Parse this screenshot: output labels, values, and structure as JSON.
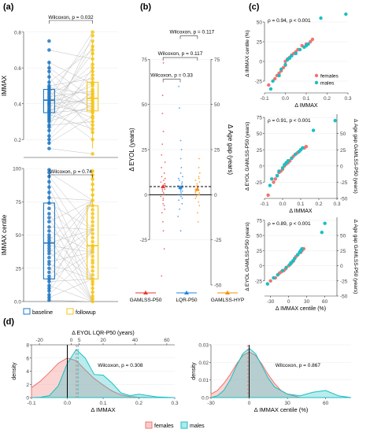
{
  "colors": {
    "baseline": "#1f77c4",
    "followup": "#f5c518",
    "pair_line": "#bdbdbd",
    "females": "#f07470",
    "males": "#19bfc4",
    "gamlss_p50": "#e53935",
    "lqr_p50": "#1e88e5",
    "gamlss_hyp": "#fb8c00",
    "axis": "#333333",
    "grid": "#ebebeb"
  },
  "panels": {
    "a": "(a)",
    "b": "(b)",
    "c": "(c)",
    "d": "(d)"
  },
  "legend_a": {
    "baseline": "baseline",
    "followup": "followup"
  },
  "legend_d": {
    "females": "females",
    "males": "males"
  },
  "chart_data": [
    {
      "id": "a_top",
      "type": "box_paired",
      "ylabel": "IMMAX",
      "ylim": [
        0.1,
        0.9
      ],
      "yticks": [
        0.2,
        0.4,
        0.6,
        0.8
      ],
      "annotation": "Wilcoxon, p = 0.032",
      "series": [
        {
          "name": "baseline",
          "q1": 0.35,
          "median": 0.42,
          "q3": 0.48,
          "whisker_low": 0.17,
          "whisker_high": 0.64,
          "points": [
            0.15,
            0.18,
            0.2,
            0.22,
            0.25,
            0.27,
            0.28,
            0.3,
            0.31,
            0.32,
            0.33,
            0.34,
            0.35,
            0.36,
            0.36,
            0.37,
            0.38,
            0.39,
            0.4,
            0.4,
            0.41,
            0.42,
            0.42,
            0.43,
            0.44,
            0.45,
            0.46,
            0.47,
            0.48,
            0.49,
            0.5,
            0.52,
            0.55,
            0.58,
            0.6,
            0.63,
            0.7,
            0.75
          ]
        },
        {
          "name": "followup",
          "q1": 0.36,
          "median": 0.43,
          "q3": 0.52,
          "whisker_low": 0.15,
          "whisker_high": 0.75,
          "points": [
            0.12,
            0.2,
            0.24,
            0.26,
            0.28,
            0.3,
            0.32,
            0.33,
            0.35,
            0.36,
            0.37,
            0.38,
            0.39,
            0.4,
            0.41,
            0.42,
            0.43,
            0.44,
            0.45,
            0.46,
            0.47,
            0.48,
            0.5,
            0.51,
            0.52,
            0.54,
            0.56,
            0.58,
            0.6,
            0.62,
            0.65,
            0.68,
            0.7,
            0.72,
            0.75,
            0.78,
            0.8
          ]
        }
      ]
    },
    {
      "id": "a_bottom",
      "type": "box_paired",
      "ylabel": "IMMAX centile",
      "ylim": [
        0,
        100
      ],
      "yticks": [
        0,
        25,
        50,
        75,
        100
      ],
      "annotation": "Wilcoxon, p = 0.74",
      "series": [
        {
          "name": "baseline",
          "q1": 17,
          "median": 44,
          "q3": 74,
          "whisker_low": 0,
          "whisker_high": 99,
          "points": [
            1,
            3,
            5,
            8,
            10,
            12,
            15,
            17,
            19,
            22,
            25,
            28,
            30,
            33,
            36,
            38,
            40,
            42,
            44,
            46,
            48,
            50,
            53,
            56,
            60,
            63,
            66,
            70,
            74,
            78,
            82,
            86,
            90,
            94,
            97,
            99
          ]
        },
        {
          "name": "followup",
          "q1": 17,
          "median": 42,
          "q3": 72,
          "whisker_low": 0,
          "whisker_high": 99,
          "points": [
            0,
            2,
            4,
            7,
            10,
            13,
            15,
            17,
            20,
            23,
            26,
            29,
            31,
            34,
            37,
            39,
            41,
            42,
            45,
            48,
            51,
            54,
            57,
            60,
            63,
            66,
            69,
            72,
            76,
            80,
            84,
            88,
            92,
            95,
            98
          ]
        }
      ]
    },
    {
      "id": "b",
      "type": "strip",
      "ylabel": "Δ EYOL (years)",
      "ylim": [
        -50,
        100
      ],
      "yticks": [
        -25,
        0,
        25,
        50,
        75
      ],
      "y2label": "Δ Age gap (years)",
      "y2ticks": [
        -50,
        -25,
        0,
        25,
        50,
        75
      ],
      "hline_dashed": 4.5,
      "annotations": [
        "Wilcoxon, p = 0.117",
        "Wilcoxon, p = 0.117",
        "Wilcoxon, p = 0.33"
      ],
      "categories": [
        "GAMLSS-P50",
        "LQR-P50",
        "GAMLSS-HYP"
      ],
      "medians": [
        4.5,
        4.0,
        3.0
      ],
      "points": [
        [
          -45,
          -30,
          -20,
          -15,
          -10,
          -8,
          -6,
          -5,
          -3,
          -2,
          -1,
          0,
          1,
          2,
          3,
          3,
          4,
          4,
          5,
          5,
          6,
          6,
          7,
          8,
          9,
          10,
          12,
          15,
          18,
          22,
          28,
          35,
          45,
          55,
          73
        ],
        [
          -20,
          -12,
          -8,
          -5,
          -3,
          -2,
          -1,
          0,
          0,
          1,
          2,
          2,
          3,
          3,
          4,
          4,
          5,
          5,
          6,
          7,
          8,
          9,
          10,
          12,
          15,
          20,
          25,
          30,
          48,
          60
        ],
        [
          -15,
          -10,
          -6,
          -4,
          -2,
          -1,
          0,
          0,
          1,
          1,
          2,
          2,
          3,
          3,
          4,
          4,
          5,
          6,
          7,
          8,
          9,
          10,
          12,
          15,
          20
        ]
      ]
    },
    {
      "id": "c1",
      "type": "scatter",
      "xlabel": "Δ IMMAX",
      "ylabel": "Δ IMMAX centile (%)",
      "xlim": [
        -0.1,
        0.3
      ],
      "ylim": [
        -40,
        60
      ],
      "xticks": [
        -0.1,
        0.0,
        0.1,
        0.2,
        0.3
      ],
      "yticks": [
        -25,
        0,
        25,
        50
      ],
      "annotation": "ρ = 0.94, p < 0.001",
      "series": [
        {
          "name": "females",
          "x": [
            -0.08,
            -0.05,
            -0.04,
            -0.03,
            -0.02,
            -0.01,
            0.0,
            0.0,
            0.01,
            0.02,
            0.03,
            0.04,
            0.05,
            0.06,
            0.08,
            0.1,
            0.12,
            0.13
          ],
          "y": [
            -30,
            -22,
            -18,
            -15,
            -12,
            -8,
            -5,
            0,
            3,
            5,
            8,
            10,
            12,
            15,
            20,
            22,
            25,
            28
          ]
        },
        {
          "name": "males",
          "x": [
            -0.07,
            -0.06,
            -0.03,
            -0.02,
            0.0,
            0.01,
            0.02,
            0.03,
            0.05,
            0.07,
            0.09,
            0.1,
            0.11,
            0.17,
            0.29
          ],
          "y": [
            -35,
            -25,
            -18,
            -10,
            -4,
            2,
            4,
            7,
            10,
            15,
            18,
            20,
            22,
            55,
            60
          ]
        }
      ]
    },
    {
      "id": "c2",
      "type": "scatter",
      "xlabel": "Δ IMMAX",
      "ylabel": "Δ EYOL GAMLSS-P50 (years)",
      "xlim": [
        -0.1,
        0.3
      ],
      "ylim": [
        -50,
        80
      ],
      "xticks": [
        -0.1,
        0.0,
        0.1,
        0.2,
        0.3
      ],
      "yticks": [
        -25,
        0,
        25,
        50,
        75
      ],
      "y2label": "Δ Age gap GAMLSS-P50 (years)",
      "y2ticks": [
        -50,
        -25,
        0,
        25,
        50
      ],
      "annotation": "ρ = 0.91, p < 0.001",
      "series": [
        {
          "name": "females",
          "x": [
            -0.08,
            -0.05,
            -0.04,
            -0.03,
            -0.02,
            -0.01,
            0.0,
            0.01,
            0.02,
            0.03,
            0.04,
            0.05,
            0.06,
            0.08,
            0.1,
            0.12,
            0.13
          ],
          "y": [
            -45,
            -25,
            -20,
            -15,
            -10,
            -8,
            -5,
            0,
            3,
            5,
            8,
            12,
            15,
            20,
            25,
            28,
            30
          ]
        },
        {
          "name": "males",
          "x": [
            -0.07,
            -0.06,
            -0.03,
            -0.02,
            0.0,
            0.01,
            0.02,
            0.03,
            0.05,
            0.07,
            0.09,
            0.1,
            0.11,
            0.17,
            0.29
          ],
          "y": [
            -30,
            -20,
            -15,
            -8,
            -3,
            2,
            5,
            8,
            12,
            18,
            22,
            25,
            28,
            55,
            70
          ]
        }
      ]
    },
    {
      "id": "c3",
      "type": "scatter",
      "xlabel": "Δ IMMAX centile (%)",
      "ylabel": "Δ EYOL GAMLSS-P50 (years)",
      "xlim": [
        -40,
        80
      ],
      "ylim": [
        -50,
        80
      ],
      "xticks": [
        -30,
        0,
        30,
        60
      ],
      "yticks": [
        -25,
        0,
        25,
        50,
        75
      ],
      "y2label": "Δ Age gap GAMLSS-P50 (years)",
      "y2ticks": [
        -50,
        -25,
        0,
        25,
        50
      ],
      "annotation": "ρ = 0.89, p < 0.001",
      "series": [
        {
          "name": "females",
          "x": [
            -30,
            -22,
            -18,
            -15,
            -12,
            -8,
            -5,
            0,
            3,
            5,
            8,
            10,
            12,
            15,
            20,
            22,
            25
          ],
          "y": [
            -25,
            -20,
            -15,
            -12,
            -10,
            -8,
            -5,
            0,
            3,
            5,
            8,
            12,
            15,
            18,
            22,
            25,
            28
          ]
        },
        {
          "name": "males",
          "x": [
            -35,
            -25,
            -18,
            -10,
            -4,
            2,
            4,
            7,
            10,
            15,
            18,
            20,
            22,
            55,
            60
          ],
          "y": [
            -30,
            -20,
            -15,
            -8,
            -3,
            2,
            5,
            8,
            12,
            18,
            22,
            25,
            28,
            55,
            70
          ]
        }
      ]
    },
    {
      "id": "d1",
      "type": "density",
      "xlabel": "Δ IMMAX",
      "ylabel": "density",
      "xlim": [
        -0.1,
        0.3
      ],
      "ylim": [
        0,
        8
      ],
      "xticks": [
        -0.1,
        0.0,
        0.1,
        0.2,
        0.3
      ],
      "yticks": [
        0,
        2,
        4,
        6,
        8
      ],
      "x2label": "Δ EYOL LQR-P50 (years)",
      "x2ticks": [
        -20,
        0,
        5,
        20,
        40,
        60
      ],
      "annotation": "Wilcoxon, p = 0.308",
      "vlines": [
        0.0,
        0.025,
        0.03
      ],
      "series": [
        {
          "name": "females",
          "x": [
            -0.1,
            -0.075,
            -0.05,
            -0.025,
            0.0,
            0.025,
            0.05,
            0.075,
            0.1,
            0.125,
            0.15,
            0.175,
            0.2,
            0.25,
            0.3
          ],
          "y": [
            1.5,
            2.5,
            3.8,
            5.2,
            6.0,
            5.6,
            4.2,
            2.9,
            1.9,
            1.0,
            0.4,
            0.15,
            0.05,
            0.0,
            0.0
          ]
        },
        {
          "name": "males",
          "x": [
            -0.1,
            -0.075,
            -0.05,
            -0.025,
            0.0,
            0.025,
            0.05,
            0.075,
            0.1,
            0.125,
            0.15,
            0.175,
            0.2,
            0.25,
            0.3
          ],
          "y": [
            0.0,
            0.05,
            0.3,
            1.8,
            5.2,
            7.3,
            6.0,
            3.5,
            3.4,
            2.2,
            0.7,
            0.3,
            0.5,
            0.1,
            0.0
          ]
        }
      ]
    },
    {
      "id": "d2",
      "type": "density",
      "xlabel": "Δ IMMAX centile (%)",
      "ylabel": "density",
      "xlim": [
        -30,
        80
      ],
      "ylim": [
        0,
        0.03
      ],
      "xticks": [
        -30,
        0,
        30,
        60
      ],
      "yticks": [
        0.0,
        0.01,
        0.02,
        0.03
      ],
      "annotation": "Wilcoxon, p = 0.867",
      "vlines": [
        0,
        -1
      ],
      "series": [
        {
          "name": "females",
          "x": [
            -30,
            -25,
            -20,
            -15,
            -10,
            -5,
            0,
            5,
            10,
            15,
            20,
            25,
            30,
            40,
            50,
            60,
            70,
            80
          ],
          "y": [
            0.002,
            0.004,
            0.008,
            0.013,
            0.019,
            0.024,
            0.026,
            0.024,
            0.019,
            0.013,
            0.008,
            0.004,
            0.002,
            0.0,
            0.0,
            0.0,
            0.0,
            0.0
          ]
        },
        {
          "name": "males",
          "x": [
            -30,
            -25,
            -20,
            -15,
            -10,
            -5,
            0,
            5,
            10,
            15,
            20,
            25,
            30,
            40,
            50,
            60,
            70,
            80
          ],
          "y": [
            0.0,
            0.001,
            0.004,
            0.01,
            0.018,
            0.025,
            0.028,
            0.025,
            0.018,
            0.011,
            0.006,
            0.004,
            0.002,
            0.001,
            0.003,
            0.004,
            0.001,
            0.0
          ]
        }
      ]
    }
  ]
}
